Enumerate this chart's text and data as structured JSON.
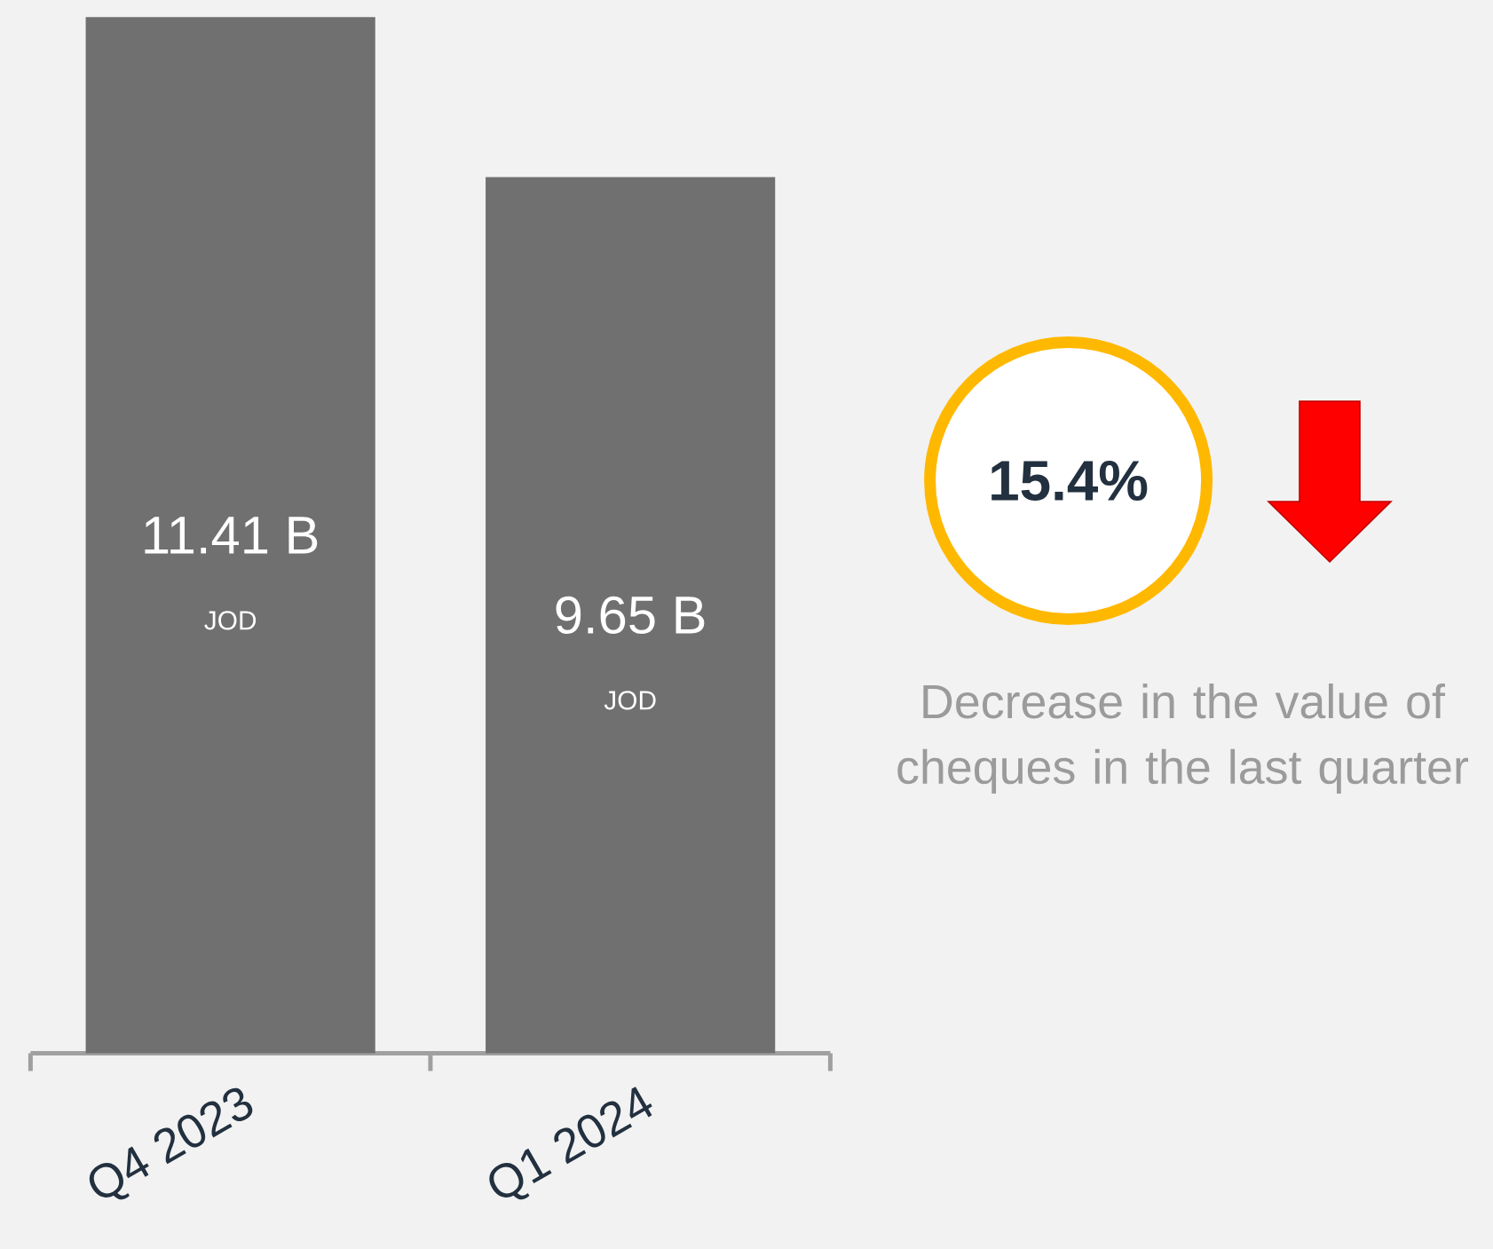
{
  "chart_data": {
    "type": "bar",
    "categories": [
      "Q4 2023",
      "Q1 2024"
    ],
    "values": [
      11.41,
      9.65
    ],
    "color": "#6f706f",
    "value_labels": [
      "11.41 B",
      "9.65 B"
    ],
    "annotations": [
      "JOD",
      "JOD",
      "15.4%",
      "Decrease in the value of cheques in the last quarter"
    ]
  }
}
